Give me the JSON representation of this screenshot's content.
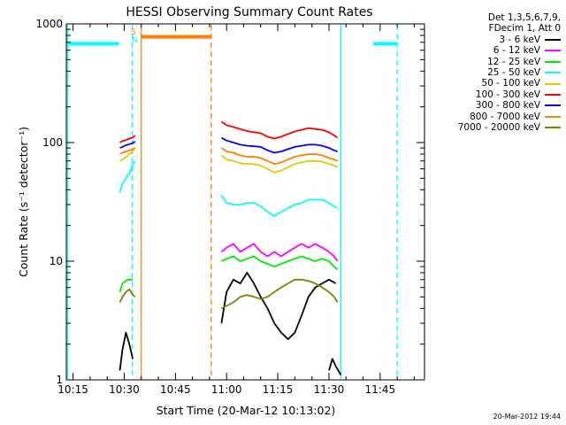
{
  "chart_data": {
    "type": "line",
    "title": "HESSI Observing Summary Count Rates",
    "xlabel": "Start Time (20-Mar-12 10:13:02)",
    "ylabel": "Count Rate (s⁻¹ detector⁻¹)",
    "x_ticks": [
      "10:15",
      "10:30",
      "10:45",
      "11:00",
      "11:15",
      "11:30",
      "11:45"
    ],
    "x_tick_minutes": [
      15,
      30,
      45,
      60,
      75,
      90,
      105
    ],
    "xlim_minutes_after_10h": [
      13.03,
      118
    ],
    "y_scale": "log",
    "ylim": [
      1,
      1000
    ],
    "y_ticks": [
      "1",
      "10",
      "100",
      "1000"
    ],
    "grid": false,
    "legend_placement": "right, outside plot",
    "legend_header": [
      "Det 1,3,5,6,7,9,",
      "FDecim 1, Att 0"
    ],
    "series": [
      {
        "name": "3 - 6 keV",
        "color": "#000000",
        "segments": [
          {
            "x": [
              28.7,
              29.5,
              30.5,
              31.5,
              32.5
            ],
            "y": [
              1.2,
              1.8,
              2.5,
              2.0,
              1.5
            ]
          },
          {
            "x": [
              58.5,
              60,
              62,
              64,
              66,
              68,
              70,
              72,
              74,
              76,
              78,
              80,
              82,
              84,
              86,
              88,
              90,
              92
            ],
            "y": [
              3.0,
              5.5,
              7.0,
              6.5,
              8.0,
              6.5,
              5.0,
              4.0,
              3.0,
              2.5,
              2.2,
              2.5,
              3.5,
              5.0,
              6.0,
              6.5,
              7.0,
              6.5
            ]
          },
          {
            "x": [
              90,
              91,
              92,
              93.5
            ],
            "y": [
              1.2,
              1.5,
              1.3,
              1.1
            ]
          }
        ]
      },
      {
        "name": "6 - 12 keV",
        "color": "#ff00ff",
        "segments": [
          {
            "x": [
              58.5,
              60,
              62,
              64,
              66,
              68,
              70,
              72,
              74,
              76,
              78,
              80,
              82,
              84,
              86,
              88,
              90,
              91.5,
              92.5
            ],
            "y": [
              12,
              13,
              14,
              12,
              13,
              14,
              12,
              11,
              12,
              11,
              12,
              13,
              14,
              13,
              14,
              13,
              12,
              11,
              10
            ]
          }
        ]
      },
      {
        "name": "12 - 25 keV",
        "color": "#00ee00",
        "segments": [
          {
            "x": [
              28.7,
              29.5,
              31,
              32.5
            ],
            "y": [
              5.5,
              6.5,
              7,
              7
            ]
          },
          {
            "x": [
              58.5,
              60,
              62,
              64,
              66,
              68,
              70,
              72,
              74,
              76,
              78,
              80,
              82,
              84,
              86,
              88,
              90,
              91.5,
              92.5
            ],
            "y": [
              10,
              10.5,
              11,
              10,
              10.5,
              11,
              10,
              9.5,
              9,
              9.5,
              10,
              10.5,
              11,
              10.5,
              10,
              10.5,
              10,
              9,
              8.5
            ]
          }
        ]
      },
      {
        "name": "25 - 50 keV",
        "color": "#00ffff",
        "segments": [
          {
            "x": [
              13.5,
              28.5
            ],
            "y": [
              680,
              680
            ]
          },
          {
            "x": [
              28.7,
              29.5,
              30.5,
              31.5,
              32.5,
              33.2
            ],
            "y": [
              38,
              45,
              50,
              55,
              65,
              70
            ]
          },
          {
            "x": [
              58.5,
              60,
              62,
              64,
              66,
              68,
              70,
              72,
              74,
              76,
              78,
              80,
              82,
              84,
              86,
              88,
              90,
              91.5,
              92.5
            ],
            "y": [
              36,
              31,
              30,
              30,
              31,
              31,
              29,
              26,
              24,
              26,
              28,
              30,
              31,
              33,
              33,
              33,
              31,
              29,
              28
            ]
          },
          {
            "x": [
              103,
              110
            ],
            "y": [
              680,
              680
            ]
          }
        ]
      },
      {
        "name": "50 - 100 keV",
        "color": "#ddcc00",
        "segments": [
          {
            "x": [
              28.7,
              29.5,
              30.5,
              31.5,
              32.5,
              33.2
            ],
            "y": [
              70,
              72,
              75,
              80,
              85,
              90
            ]
          },
          {
            "x": [
              58.5,
              60,
              62,
              64,
              66,
              68,
              70,
              72,
              74,
              76,
              78,
              80,
              82,
              84,
              86,
              88,
              90,
              91.5,
              92.5
            ],
            "y": [
              78,
              72,
              70,
              67,
              66,
              66,
              64,
              60,
              56,
              58,
              62,
              66,
              68,
              70,
              70,
              69,
              66,
              64,
              62
            ]
          }
        ]
      },
      {
        "name": "100 - 300 keV",
        "color": "#ff0000",
        "segments": [
          {
            "x": [
              28.7,
              29.5,
              30.5,
              31.5,
              32.5,
              33.2
            ],
            "y": [
              100,
              103,
              105,
              108,
              110,
              115
            ]
          },
          {
            "x": [
              58.5,
              60,
              62,
              64,
              66,
              68,
              70,
              72,
              74,
              76,
              78,
              80,
              82,
              84,
              86,
              88,
              90,
              91.5,
              92.5
            ],
            "y": [
              150,
              140,
              135,
              130,
              125,
              122,
              120,
              112,
              108,
              112,
              118,
              124,
              128,
              132,
              130,
              128,
              122,
              115,
              110
            ]
          }
        ]
      },
      {
        "name": "300 - 800 keV",
        "color": "#0000ff",
        "segments": [
          {
            "x": [
              28.7,
              29.5,
              30.5,
              31.5,
              32.5,
              33.2
            ],
            "y": [
              90,
              92,
              95,
              97,
              99,
              102
            ]
          },
          {
            "x": [
              58.5,
              60,
              62,
              64,
              66,
              68,
              70,
              72,
              74,
              76,
              78,
              80,
              82,
              84,
              86,
              88,
              90,
              91.5,
              92.5
            ],
            "y": [
              110,
              104,
              100,
              96,
              94,
              93,
              92,
              86,
              82,
              84,
              88,
              92,
              94,
              96,
              96,
              94,
              90,
              86,
              84
            ]
          }
        ]
      },
      {
        "name": "800 - 7000 keV",
        "color": "#ff7f00",
        "segments": [
          {
            "x": [
              28.7,
              29.5,
              30.5,
              31.5,
              32.5,
              33.2
            ],
            "y": [
              80,
              82,
              84,
              86,
              88,
              90
            ]
          },
          {
            "x": [
              35,
              55.5
            ],
            "y": [
              780,
              780
            ]
          },
          {
            "x": [
              58.5,
              60,
              62,
              64,
              66,
              68,
              70,
              72,
              74,
              76,
              78,
              80,
              82,
              84,
              86,
              88,
              90,
              91.5,
              92.5
            ],
            "y": [
              90,
              84,
              82,
              78,
              76,
              76,
              74,
              70,
              66,
              68,
              72,
              76,
              78,
              80,
              80,
              78,
              74,
              72,
              70
            ]
          }
        ]
      },
      {
        "name": "7000 - 20000 keV",
        "color": "#808000",
        "segments": [
          {
            "x": [
              28.7,
              29.5,
              30.5,
              31.5,
              32.5,
              33.2
            ],
            "y": [
              4.5,
              5.0,
              5.5,
              5.8,
              5.2,
              5.0
            ]
          },
          {
            "x": [
              58.5,
              60,
              62,
              64,
              66,
              68,
              70,
              72,
              74,
              76,
              78,
              80,
              82,
              84,
              86,
              88,
              90,
              91.5,
              92.5
            ],
            "y": [
              4.0,
              4.2,
              4.5,
              5.0,
              5.2,
              5.0,
              4.8,
              5.0,
              5.5,
              6.0,
              6.5,
              7.0,
              7.0,
              6.8,
              6.5,
              6.0,
              5.5,
              5.0,
              4.5
            ]
          }
        ]
      }
    ],
    "markers": [
      {
        "label": "S",
        "color": "#ff8000",
        "x": 32.4
      },
      {
        "label": "N",
        "color": "#00ffff",
        "x": 32.8
      }
    ],
    "vertical_lines": [
      {
        "x": 13.4,
        "color": "#00ffff",
        "style": "solid"
      },
      {
        "x": 32.4,
        "color": "#00ffff",
        "style": "dashed"
      },
      {
        "x": 35.0,
        "color": "#ff7f00",
        "style": "solid"
      },
      {
        "x": 55.5,
        "color": "#ff7f00",
        "style": "dashed"
      },
      {
        "x": 93.5,
        "color": "#00ffff",
        "style": "solid"
      },
      {
        "x": 110.0,
        "color": "#00ffff",
        "style": "dashed"
      }
    ]
  },
  "footer": {
    "timestamp": "20-Mar-2012 19:44"
  }
}
